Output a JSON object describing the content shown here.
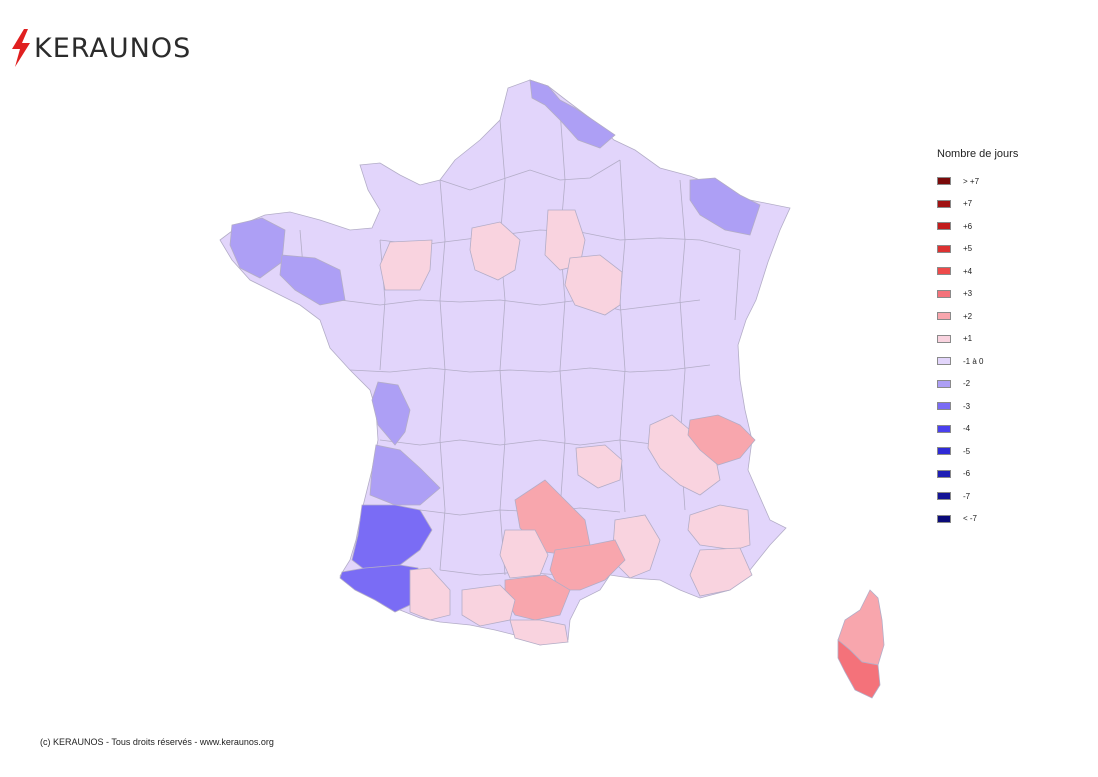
{
  "header": {
    "logo_text": "KERAUNOS"
  },
  "legend": {
    "title": "Nombre de jours",
    "items": [
      {
        "label": "> +7",
        "color": "#7a0a0a"
      },
      {
        "label": "+7",
        "color": "#a01212"
      },
      {
        "label": "+6",
        "color": "#c21c1c"
      },
      {
        "label": "+5",
        "color": "#dc3232"
      },
      {
        "label": "+4",
        "color": "#ee4a4a"
      },
      {
        "label": "+3",
        "color": "#f4727a"
      },
      {
        "label": "+2",
        "color": "#f8a6ad"
      },
      {
        "label": "+1",
        "color": "#f9d3df"
      },
      {
        "label": "-1 à 0",
        "color": "#e2d5fb"
      },
      {
        "label": "-2",
        "color": "#ad9ff5"
      },
      {
        "label": "-3",
        "color": "#7a6cf5"
      },
      {
        "label": "-4",
        "color": "#4a40ee"
      },
      {
        "label": "-5",
        "color": "#2f2ad6"
      },
      {
        "label": "-6",
        "color": "#1e1eb4"
      },
      {
        "label": "-7",
        "color": "#141496"
      },
      {
        "label": "< -7",
        "color": "#0a0a78"
      }
    ]
  },
  "map": {
    "base_class": "-1 à 0",
    "highlighted_regions": [
      {
        "name": "Finistère",
        "class": "-2"
      },
      {
        "name": "Morbihan",
        "class": "-2"
      },
      {
        "name": "Nord",
        "class": "-2"
      },
      {
        "name": "Ardennes",
        "class": "-2"
      },
      {
        "name": "Charente-Maritime",
        "class": "-2"
      },
      {
        "name": "Gironde",
        "class": "-2"
      },
      {
        "name": "Landes",
        "class": "-3"
      },
      {
        "name": "Pyrénées-Atlantiques",
        "class": "-3"
      },
      {
        "name": "Mayenne",
        "class": "+1"
      },
      {
        "name": "Eure-et-Loir",
        "class": "+1"
      },
      {
        "name": "Seine-et-Marne",
        "class": "+1"
      },
      {
        "name": "Aube",
        "class": "+1"
      },
      {
        "name": "Loire",
        "class": "+1"
      },
      {
        "name": "Rhône",
        "class": "+1"
      },
      {
        "name": "Isère",
        "class": "+1"
      },
      {
        "name": "Ardèche",
        "class": "+1"
      },
      {
        "name": "Drôme",
        "class": "+1"
      },
      {
        "name": "Var",
        "class": "+1"
      },
      {
        "name": "Tarn",
        "class": "+1"
      },
      {
        "name": "Haute-Garonne",
        "class": "+1"
      },
      {
        "name": "Hautes-Pyrénées",
        "class": "+1"
      },
      {
        "name": "Pyrénées-Orientales",
        "class": "+1"
      },
      {
        "name": "Savoie",
        "class": "+2"
      },
      {
        "name": "Aveyron",
        "class": "+2"
      },
      {
        "name": "Gard",
        "class": "+2"
      },
      {
        "name": "Aude",
        "class": "+2"
      },
      {
        "name": "Hérault",
        "class": "+2"
      },
      {
        "name": "Haute-Corse",
        "class": "+2"
      },
      {
        "name": "Corse-du-Sud",
        "class": "+3"
      }
    ]
  },
  "footer": {
    "copyright": "(c) KERAUNOS - Tous droits réservés - www.keraunos.org"
  }
}
